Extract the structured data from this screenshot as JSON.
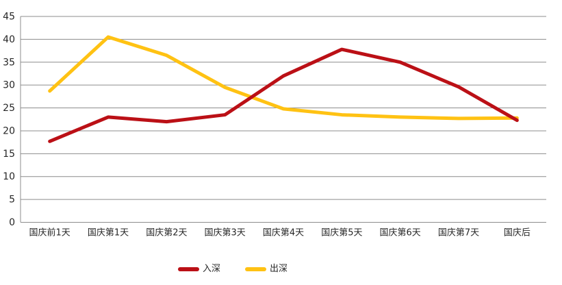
{
  "chart_data": {
    "type": "line",
    "categories": [
      "国庆前1天",
      "国庆第1天",
      "国庆第2天",
      "国庆第3天",
      "国庆第4天",
      "国庆第5天",
      "国庆第6天",
      "国庆第7天",
      "国庆后"
    ],
    "series": [
      {
        "name": "入深",
        "color": "#BB1016",
        "values": [
          17.7,
          23,
          22,
          23.5,
          32,
          37.8,
          35,
          29.6,
          22.3
        ]
      },
      {
        "name": "出深",
        "color": "#FFC213",
        "values": [
          28.7,
          40.5,
          36.5,
          29.5,
          24.8,
          23.5,
          23,
          22.7,
          22.8
        ]
      }
    ],
    "title": "",
    "xlabel": "",
    "ylabel": "",
    "ylim": [
      0,
      45
    ],
    "ytick_step": 5,
    "yticks": [
      "0",
      "5",
      "10",
      "15",
      "20",
      "25",
      "30",
      "35",
      "40",
      "45"
    ],
    "grid": "horizontal",
    "legend_position": "bottom"
  },
  "colors": {
    "grid": "#8C8C8C",
    "axis": "#8C8C8C",
    "tick_text": "#262626",
    "background": "#FFFFFF"
  }
}
